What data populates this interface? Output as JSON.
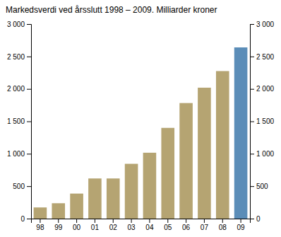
{
  "chart_data": {
    "type": "bar",
    "title": "Markedsverdi ved årsslutt 1998 – 2009. Milliarder kroner",
    "categories": [
      "98",
      "99",
      "00",
      "01",
      "02",
      "03",
      "04",
      "05",
      "06",
      "07",
      "08",
      "09"
    ],
    "values": [
      172,
      237,
      386,
      619,
      619,
      845,
      1016,
      1399,
      1782,
      2019,
      2275,
      2640
    ],
    "colors": [
      "#b5a472",
      "#b5a472",
      "#b5a472",
      "#b5a472",
      "#b5a472",
      "#b5a472",
      "#b5a472",
      "#b5a472",
      "#b5a472",
      "#b5a472",
      "#b5a472",
      "#5b8db8"
    ],
    "ylim": [
      0,
      3000
    ],
    "yticks": [
      0,
      500,
      {
        "value": 1000,
        "label": "1 000"
      },
      {
        "value": 1500,
        "label": "1 500"
      },
      {
        "value": 2000,
        "label": "2 000"
      },
      {
        "value": 2500,
        "label": "2 500"
      },
      {
        "value": 3000,
        "label": "3 000"
      }
    ],
    "y2lim": [
      0,
      3000
    ],
    "y2ticks": [
      0,
      500,
      {
        "value": 1000,
        "label": "1 000"
      },
      {
        "value": 1500,
        "label": "1 500"
      },
      {
        "value": 2000,
        "label": "2 000"
      },
      {
        "value": 2500,
        "label": "2 500"
      },
      {
        "value": 3000,
        "label": "3 000"
      }
    ],
    "grid": false
  }
}
